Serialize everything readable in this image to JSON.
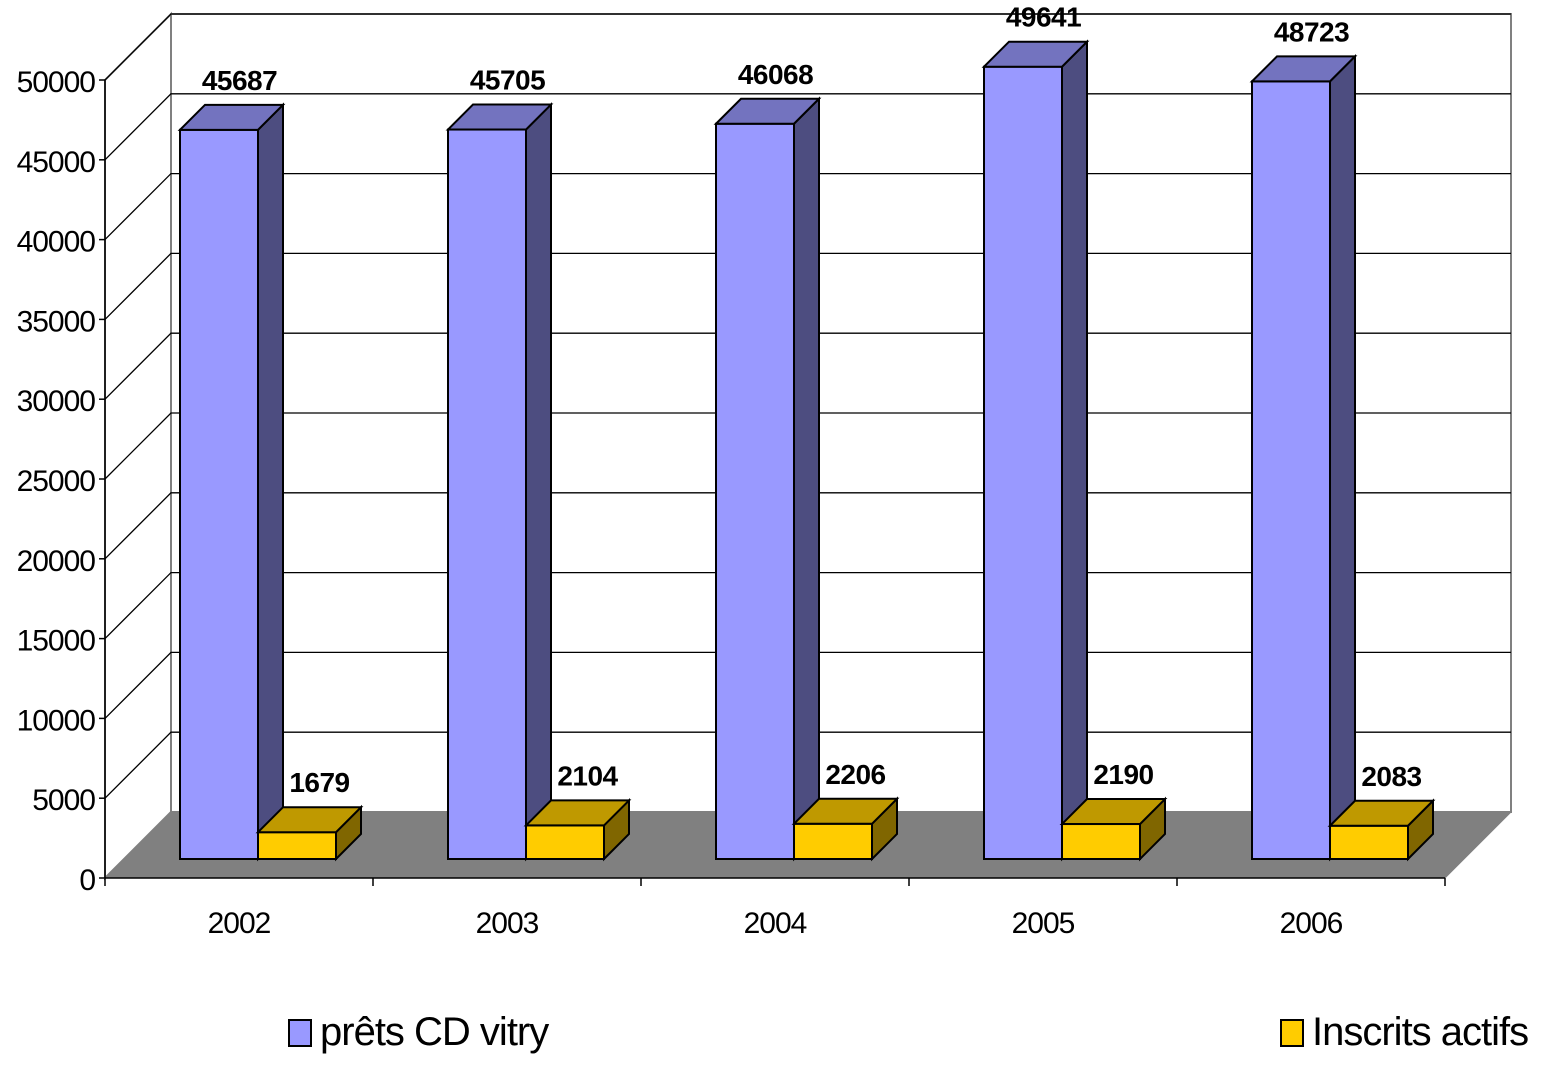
{
  "chart_data": {
    "type": "bar",
    "categories": [
      "2002",
      "2003",
      "2004",
      "2005",
      "2006"
    ],
    "series": [
      {
        "name": "prêts CD vitry",
        "values": [
          45687,
          45705,
          46068,
          49641,
          48723
        ],
        "color": "#9999ff",
        "side_color": "#4d4d80",
        "top_color": "#7373bf"
      },
      {
        "name": "Inscrits actifs",
        "values": [
          1679,
          2104,
          2206,
          2190,
          2083
        ],
        "color": "#ffcc00",
        "side_color": "#806600",
        "top_color": "#bf9900"
      }
    ],
    "ylim": [
      0,
      50000
    ],
    "y_ticks": [
      "0",
      "5000",
      "10000",
      "15000",
      "20000",
      "25000",
      "30000",
      "35000",
      "40000",
      "45000",
      "50000"
    ],
    "grid": true,
    "legend_position": "bottom",
    "style": "3d-clustered-column",
    "floor_color": "#808080"
  }
}
